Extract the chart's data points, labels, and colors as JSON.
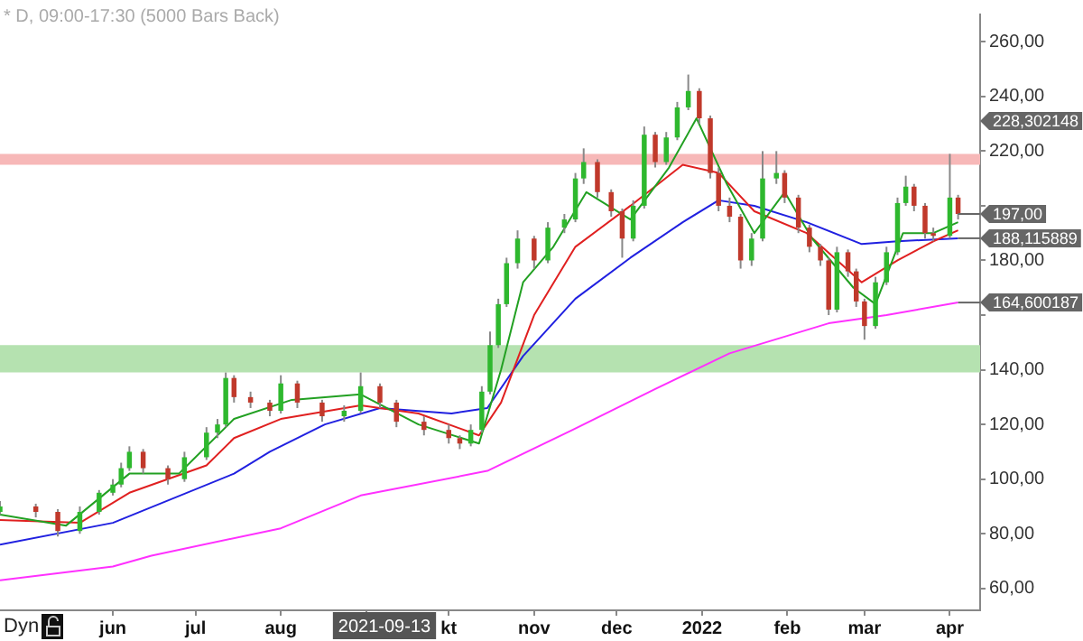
{
  "chart_data": {
    "type": "candlestick",
    "title": "* D, 09:00-17:30 (5000 Bars Back)",
    "x": [
      "2021-04-21",
      "2021-05-04",
      "2021-05-12",
      "2021-05-20",
      "2021-05-27",
      "2021-06-01",
      "2021-06-04",
      "2021-06-07",
      "2021-06-12",
      "2021-06-21",
      "2021-06-27",
      "2021-07-05",
      "2021-07-09",
      "2021-07-12",
      "2021-07-15",
      "2021-07-21",
      "2021-07-28",
      "2021-08-01",
      "2021-08-07",
      "2021-08-16",
      "2021-08-24",
      "2021-08-30",
      "2021-09-06",
      "2021-09-12",
      "2021-09-22",
      "2021-10-01",
      "2021-10-05",
      "2021-10-09",
      "2021-10-13",
      "2021-10-16",
      "2021-10-19",
      "2021-10-22",
      "2021-10-26",
      "2021-11-01",
      "2021-11-06",
      "2021-11-12",
      "2021-11-16",
      "2021-11-19",
      "2021-11-24",
      "2021-11-29",
      "2021-12-03",
      "2021-12-07",
      "2021-12-11",
      "2021-12-15",
      "2021-12-19",
      "2021-12-23",
      "2021-12-27",
      "2021-12-31",
      "2022-01-04",
      "2022-01-07",
      "2022-01-11",
      "2022-01-15",
      "2022-01-19",
      "2022-01-23",
      "2022-01-28",
      "2022-01-31",
      "2022-02-05",
      "2022-02-09",
      "2022-02-13",
      "2022-02-16",
      "2022-02-19",
      "2022-02-23",
      "2022-02-26",
      "2022-03-01",
      "2022-03-05",
      "2022-03-09",
      "2022-03-13",
      "2022-03-16",
      "2022-03-19",
      "2022-03-23",
      "2022-03-26",
      "2022-04-01",
      "2022-04-04"
    ],
    "ohlc": [
      [
        88,
        92,
        87,
        90
      ],
      [
        90,
        91,
        86,
        88
      ],
      [
        88,
        89,
        79,
        81
      ],
      [
        81,
        90,
        80,
        88
      ],
      [
        88,
        96,
        87,
        95
      ],
      [
        95,
        100,
        94,
        98
      ],
      [
        98,
        106,
        97,
        104
      ],
      [
        104,
        112,
        103,
        110
      ],
      [
        110,
        111,
        102,
        104
      ],
      [
        104,
        105,
        98,
        100
      ],
      [
        100,
        110,
        99,
        108
      ],
      [
        108,
        119,
        107,
        117
      ],
      [
        117,
        122,
        115,
        120
      ],
      [
        120,
        139,
        119,
        137
      ],
      [
        137,
        138,
        128,
        130
      ],
      [
        130,
        132,
        126,
        128
      ],
      [
        128,
        129,
        123,
        125
      ],
      [
        125,
        138,
        124,
        135
      ],
      [
        135,
        136,
        126,
        128
      ],
      [
        128,
        129,
        121,
        123
      ],
      [
        123,
        127,
        121,
        125
      ],
      [
        125,
        139,
        124,
        134
      ],
      [
        134,
        135,
        126,
        128
      ],
      [
        128,
        129,
        119,
        121
      ],
      [
        121,
        123,
        116,
        118
      ],
      [
        118,
        120,
        113,
        115
      ],
      [
        115,
        116,
        111,
        113
      ],
      [
        113,
        120,
        112,
        118
      ],
      [
        118,
        134,
        117,
        132
      ],
      [
        132,
        154,
        131,
        149
      ],
      [
        149,
        166,
        148,
        164
      ],
      [
        164,
        181,
        163,
        179
      ],
      [
        179,
        191,
        177,
        188
      ],
      [
        188,
        189,
        177,
        180
      ],
      [
        180,
        194,
        179,
        192
      ],
      [
        192,
        197,
        190,
        195
      ],
      [
        195,
        212,
        194,
        210
      ],
      [
        210,
        221,
        208,
        216
      ],
      [
        216,
        217,
        203,
        205
      ],
      [
        205,
        206,
        196,
        198
      ],
      [
        198,
        199,
        181,
        188
      ],
      [
        188,
        202,
        187,
        200
      ],
      [
        200,
        229,
        199,
        226
      ],
      [
        226,
        227,
        214,
        216
      ],
      [
        216,
        227,
        215,
        225
      ],
      [
        225,
        238,
        224,
        236
      ],
      [
        236,
        248,
        235,
        242
      ],
      [
        242,
        243,
        230,
        232
      ],
      [
        232,
        233,
        210,
        212
      ],
      [
        212,
        214,
        198,
        200
      ],
      [
        200,
        203,
        194,
        196
      ],
      [
        196,
        197,
        177,
        180
      ],
      [
        180,
        190,
        178,
        188
      ],
      [
        188,
        220,
        187,
        210
      ],
      [
        210,
        220,
        208,
        212
      ],
      [
        212,
        213,
        201,
        203
      ],
      [
        203,
        204,
        190,
        192
      ],
      [
        192,
        193,
        183,
        185
      ],
      [
        185,
        186,
        178,
        180
      ],
      [
        180,
        181,
        160,
        162
      ],
      [
        162,
        185,
        161,
        183
      ],
      [
        183,
        184,
        174,
        176
      ],
      [
        176,
        177,
        163,
        165
      ],
      [
        165,
        166,
        151,
        156
      ],
      [
        156,
        174,
        155,
        172
      ],
      [
        172,
        185,
        171,
        183
      ],
      [
        183,
        203,
        182,
        201
      ],
      [
        201,
        211,
        200,
        207
      ],
      [
        207,
        208,
        198,
        200
      ],
      [
        200,
        201,
        188,
        190
      ],
      [
        190,
        192,
        187,
        189
      ],
      [
        189,
        219,
        188,
        203
      ],
      [
        203,
        204,
        195,
        197
      ]
    ],
    "series": [
      {
        "type": "line",
        "color": "#22a022",
        "x": [
          "2021-04-21",
          "2021-05-15",
          "2021-06-07",
          "2021-06-25",
          "2021-07-15",
          "2021-08-05",
          "2021-08-30",
          "2021-09-20",
          "2021-10-12",
          "2021-10-20",
          "2021-10-28",
          "2021-11-08",
          "2021-11-20",
          "2021-12-06",
          "2021-12-20",
          "2021-12-30",
          "2022-01-10",
          "2022-01-20",
          "2022-01-31",
          "2022-02-10",
          "2022-02-25",
          "2022-03-05",
          "2022-03-15",
          "2022-03-26",
          "2022-04-04"
        ],
        "values": [
          87,
          83,
          102,
          102,
          122,
          129,
          131,
          120,
          113,
          140,
          172,
          185,
          205,
          195,
          214,
          232,
          208,
          190,
          205,
          188,
          170,
          164,
          190,
          190,
          194
        ]
      },
      {
        "type": "line",
        "color": "#e02020",
        "x": [
          "2021-04-21",
          "2021-05-20",
          "2021-06-07",
          "2021-07-05",
          "2021-07-15",
          "2021-08-01",
          "2021-08-30",
          "2021-09-20",
          "2021-10-12",
          "2021-10-20",
          "2021-11-01",
          "2021-11-16",
          "2021-12-06",
          "2021-12-25",
          "2022-01-07",
          "2022-01-20",
          "2022-02-08",
          "2022-02-28",
          "2022-03-13",
          "2022-03-26",
          "2022-04-04"
        ],
        "values": [
          85,
          84,
          95,
          105,
          115,
          122,
          127,
          124,
          116,
          128,
          160,
          185,
          200,
          215,
          212,
          198,
          190,
          172,
          180,
          187,
          191
        ]
      },
      {
        "type": "line",
        "color": "#2020e0",
        "x": [
          "2021-04-21",
          "2021-06-01",
          "2021-07-15",
          "2021-07-28",
          "2021-08-17",
          "2021-09-06",
          "2021-10-02",
          "2021-10-15",
          "2021-10-28",
          "2021-11-16",
          "2021-12-06",
          "2021-12-25",
          "2022-01-07",
          "2022-01-20",
          "2022-02-08",
          "2022-02-28",
          "2022-03-13",
          "2022-04-04"
        ],
        "values": [
          76,
          84,
          102,
          110,
          120,
          126,
          124,
          126,
          145,
          166,
          181,
          194,
          202,
          200,
          194,
          186,
          187,
          188.115889
        ]
      },
      {
        "type": "line",
        "color": "#ff30ff",
        "x": [
          "2021-04-21",
          "2021-06-01",
          "2021-06-15",
          "2021-08-01",
          "2021-08-30",
          "2021-10-15",
          "2021-11-15",
          "2021-12-15",
          "2022-01-11",
          "2022-02-16",
          "2022-03-09",
          "2022-04-04"
        ],
        "values": [
          63,
          68,
          72,
          82,
          94,
          103,
          118,
          133,
          146,
          157,
          160,
          164.600187
        ]
      }
    ],
    "xlim": [
      "2021-04-21",
      "2022-04-12"
    ],
    "xticks": [
      {
        "value": "2021-06-01",
        "label": "jun"
      },
      {
        "value": "2021-07-01",
        "label": "jul"
      },
      {
        "value": "2021-08-01",
        "label": "aug"
      },
      {
        "value": "2021-09-01",
        "label": null
      },
      {
        "value": "2021-10-01",
        "label": "kt"
      },
      {
        "value": "2021-11-01",
        "label": "nov"
      },
      {
        "value": "2021-12-01",
        "label": "dec"
      },
      {
        "value": "2022-01-01",
        "label": "2022"
      },
      {
        "value": "2022-02-01",
        "label": "feb"
      },
      {
        "value": "2022-03-01",
        "label": "mar"
      },
      {
        "value": "2022-04-01",
        "label": "apr"
      }
    ],
    "ylim": [
      52,
      270
    ],
    "yticks": [
      {
        "value": 60,
        "label": "60,00"
      },
      {
        "value": 80,
        "label": "80,00"
      },
      {
        "value": 100,
        "label": "100,00"
      },
      {
        "value": 120,
        "label": "120,00"
      },
      {
        "value": 140,
        "label": "140,00"
      },
      {
        "value": 160,
        "label": null
      },
      {
        "value": 180,
        "label": "180,00"
      },
      {
        "value": 200,
        "label": null
      },
      {
        "value": 220,
        "label": "220,00"
      },
      {
        "value": 240,
        "label": "240,00"
      },
      {
        "value": 260,
        "label": "260,00"
      }
    ],
    "bands": [
      {
        "axis": "y",
        "from": 139,
        "to": 149,
        "color": "#b5e2b0"
      },
      {
        "axis": "y",
        "from": 215,
        "to": 219,
        "color": "#f7b8b8"
      }
    ],
    "annotations": [
      "Dyn",
      "2021-09-13",
      "228,302148",
      {
        "text": "197,00",
        "x": "2022-04-04",
        "y": 197
      },
      {
        "text": "188,115889",
        "x": "2022-04-04",
        "y": 188.115889
      },
      {
        "text": "164,600187",
        "x": "2022-04-04",
        "y": 164.600187
      }
    ],
    "grid": false,
    "legend": false
  }
}
